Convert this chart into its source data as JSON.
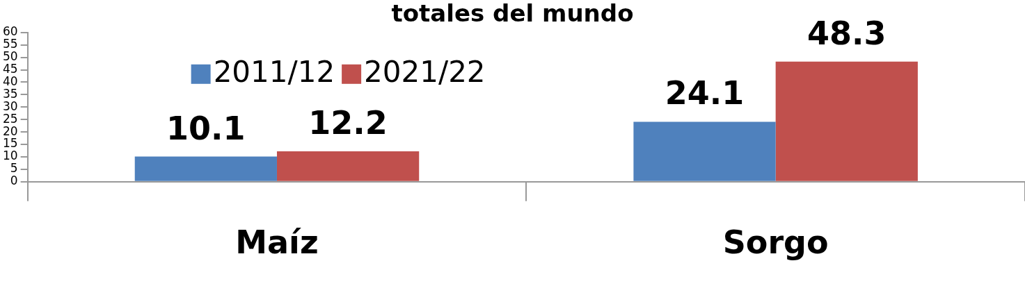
{
  "chart_data": {
    "type": "bar",
    "title": "totales del mundo",
    "categories": [
      "Maíz",
      "Sorgo"
    ],
    "series": [
      {
        "name": "2011/12",
        "color": "#4f81bd",
        "values": [
          10.1,
          24.1
        ]
      },
      {
        "name": "2021/22",
        "color": "#c0504d",
        "values": [
          12.2,
          48.3
        ]
      }
    ],
    "ylim": [
      0,
      60
    ],
    "yticks": [
      0,
      5,
      10,
      15,
      20,
      25,
      30,
      35,
      40,
      45,
      50,
      55,
      60
    ],
    "grid": false,
    "legend": "top left",
    "data_labels": true
  }
}
